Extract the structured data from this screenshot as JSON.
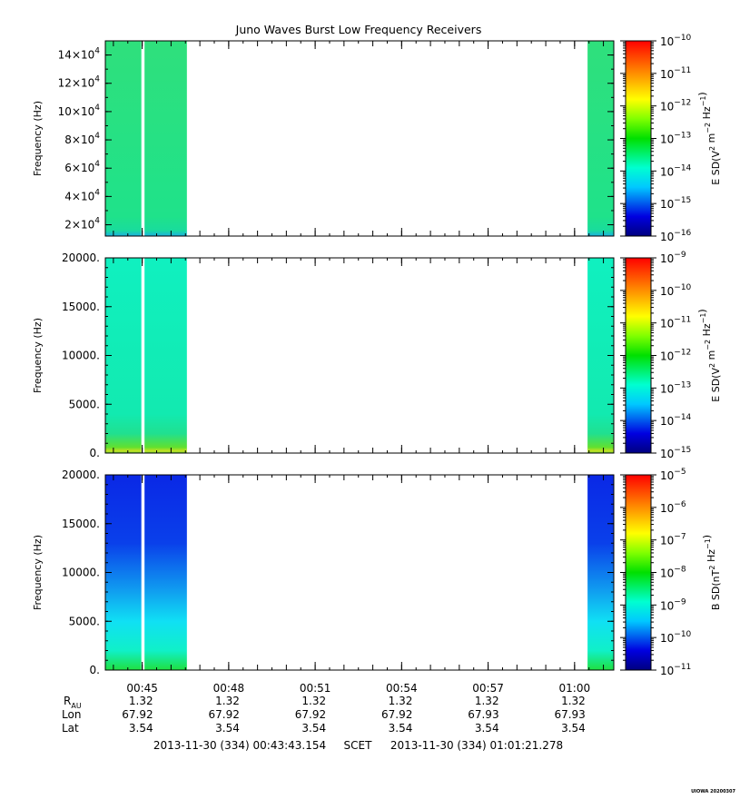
{
  "title": "Juno Waves Burst Low Frequency Receivers",
  "version_stamp": "UIOWA 20200307",
  "time_ticks": [
    "00:45",
    "00:48",
    "00:51",
    "00:54",
    "00:57",
    "01:00"
  ],
  "time_tick_minutes": [
    45,
    48,
    51,
    54,
    57,
    60
  ],
  "time_range_minutes": [
    43.72,
    61.36
  ],
  "ephemeris": {
    "labels": {
      "r": "R",
      "r_sub": "AU",
      "lon": "Lon",
      "lat": "Lat"
    },
    "r": [
      "1.32",
      "1.32",
      "1.32",
      "1.32",
      "1.32",
      "1.32"
    ],
    "lon": [
      "67.92",
      "67.92",
      "67.92",
      "67.92",
      "67.93",
      "67.93"
    ],
    "lat": [
      "3.54",
      "3.54",
      "3.54",
      "3.54",
      "3.54",
      "3.54"
    ]
  },
  "footer": {
    "start": "2013-11-30 (334) 00:43:43.154",
    "scet": "SCET",
    "end": "2013-11-30 (334) 01:01:21.278"
  },
  "chart_data": [
    {
      "type": "heatmap",
      "ylabel": "Frequency (Hz)",
      "yticks": [
        {
          "v": 20000,
          "label": "2×10",
          "exp": "4"
        },
        {
          "v": 40000,
          "label": "4×10",
          "exp": "4"
        },
        {
          "v": 60000,
          "label": "6×10",
          "exp": "4"
        },
        {
          "v": 80000,
          "label": "8×10",
          "exp": "4"
        },
        {
          "v": 100000,
          "label": "10×10",
          "exp": "4"
        },
        {
          "v": 120000,
          "label": "12×10",
          "exp": "4"
        },
        {
          "v": 140000,
          "label": "14×10",
          "exp": "4"
        }
      ],
      "ylim": [
        12000,
        150000
      ],
      "colorbar": {
        "label_base": "E SD(V",
        "label_unit": "2 m-2 Hz-1",
        "exponents": [
          -10,
          -11,
          -12,
          -13,
          -14,
          -15,
          -16
        ]
      },
      "data_intervals_minutes": [
        [
          43.72,
          44.97
        ],
        [
          45.08,
          46.55
        ],
        [
          60.45,
          61.36
        ]
      ],
      "pattern": "uniform green (~1e-13.5) with thin cyan band at lowest frequencies"
    },
    {
      "type": "heatmap",
      "ylabel": "Frequency (Hz)",
      "yticks": [
        {
          "v": 0,
          "label": "0."
        },
        {
          "v": 5000,
          "label": "5000."
        },
        {
          "v": 10000,
          "label": "10000."
        },
        {
          "v": 15000,
          "label": "15000."
        },
        {
          "v": 20000,
          "label": "20000."
        }
      ],
      "ylim": [
        0,
        20000
      ],
      "colorbar": {
        "label_base": "E SD(V",
        "label_unit": "2 m-2 Hz-1",
        "exponents": [
          -9,
          -10,
          -11,
          -12,
          -13,
          -14,
          -15
        ]
      },
      "data_intervals_minutes": [
        [
          43.72,
          44.97
        ],
        [
          45.08,
          46.55
        ],
        [
          60.45,
          61.36
        ]
      ],
      "pattern": "cyan-green (~1e-13) with green/yellow enhancement below ~1000 Hz"
    },
    {
      "type": "heatmap",
      "ylabel": "Frequency (Hz)",
      "yticks": [
        {
          "v": 0,
          "label": "0."
        },
        {
          "v": 5000,
          "label": "5000."
        },
        {
          "v": 10000,
          "label": "10000."
        },
        {
          "v": 15000,
          "label": "15000."
        },
        {
          "v": 20000,
          "label": "20000."
        }
      ],
      "ylim": [
        0,
        20000
      ],
      "colorbar": {
        "label_base": "B SD(nT",
        "label_unit": "2 Hz-1",
        "exponents": [
          -5,
          -6,
          -7,
          -8,
          -9,
          -10,
          -11
        ]
      },
      "data_intervals_minutes": [
        [
          43.72,
          44.97
        ],
        [
          45.08,
          46.55
        ],
        [
          60.45,
          61.36
        ]
      ],
      "pattern": "blue (~1e-10.5) at high frequency grading to cyan and green below ~5000 Hz"
    }
  ]
}
